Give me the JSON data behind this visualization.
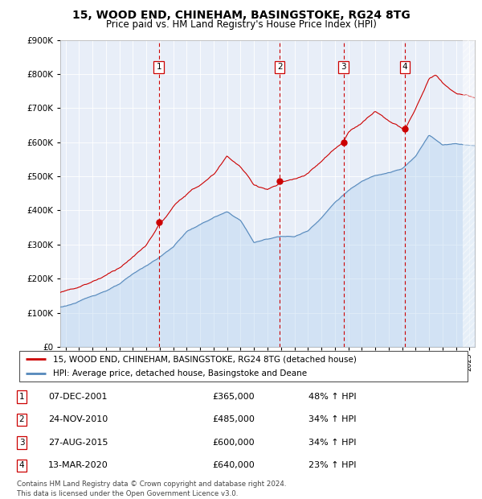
{
  "title": "15, WOOD END, CHINEHAM, BASINGSTOKE, RG24 8TG",
  "subtitle": "Price paid vs. HM Land Registry's House Price Index (HPI)",
  "footer": "Contains HM Land Registry data © Crown copyright and database right 2024.\nThis data is licensed under the Open Government Licence v3.0.",
  "legend_line1": "15, WOOD END, CHINEHAM, BASINGSTOKE, RG24 8TG (detached house)",
  "legend_line2": "HPI: Average price, detached house, Basingstoke and Deane",
  "transactions": [
    {
      "num": 1,
      "date": "07-DEC-2001",
      "price": 365000,
      "pct": "48%",
      "dir": "↑",
      "ref": "HPI",
      "year": 2001.92
    },
    {
      "num": 2,
      "date": "24-NOV-2010",
      "price": 485000,
      "pct": "34%",
      "dir": "↑",
      "ref": "HPI",
      "year": 2010.9
    },
    {
      "num": 3,
      "date": "27-AUG-2015",
      "price": 600000,
      "pct": "34%",
      "dir": "↑",
      "ref": "HPI",
      "year": 2015.65
    },
    {
      "num": 4,
      "date": "13-MAR-2020",
      "price": 640000,
      "pct": "23%",
      "dir": "↑",
      "ref": "HPI",
      "year": 2020.2
    }
  ],
  "hpi_color": "#5588bb",
  "hpi_fill_color": "#aaccee",
  "price_color": "#cc0000",
  "vline_color": "#cc0000",
  "plot_bg": "#e8eef8",
  "grid_color": "#ffffff",
  "ylim": [
    0,
    900000
  ],
  "yticks": [
    0,
    100000,
    200000,
    300000,
    400000,
    500000,
    600000,
    700000,
    800000,
    900000
  ],
  "xmin": 1994.6,
  "xmax": 2025.4,
  "hatch_start": 2024.5
}
